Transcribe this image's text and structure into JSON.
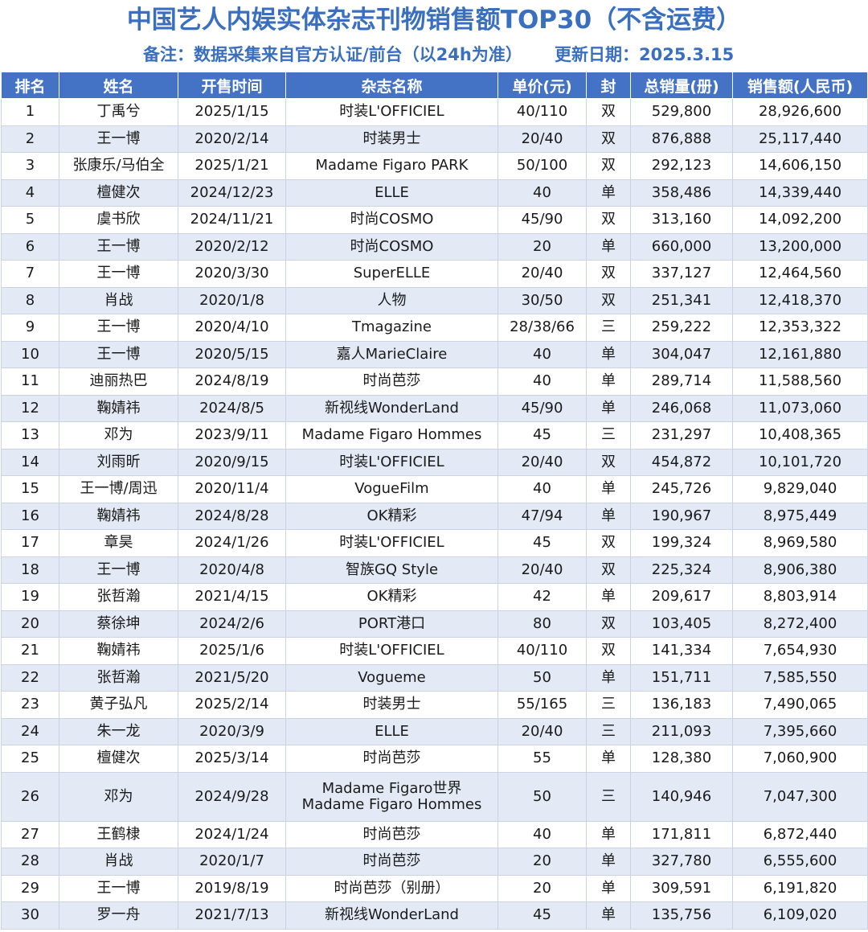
{
  "title": "中国艺人内娱实体杂志刊物销售额TOP30（不含运费）",
  "note": "备注：数据采集来自官方认证/前台（以24h为准）",
  "updated": "更新日期：2025.3.15",
  "headers": [
    "排名",
    "姓名",
    "开售时间",
    "杂志名称",
    "单价(元)",
    "封",
    "总销量(册)",
    "销售额(人民币)"
  ],
  "rows": [
    [
      "1",
      "丁禹兮",
      "2025/1/15",
      "时装L'OFFICIEL",
      "40/110",
      "双",
      "529,800",
      "28,926,600"
    ],
    [
      "2",
      "王一博",
      "2020/2/14",
      "时装男士",
      "20/40",
      "双",
      "876,888",
      "25,117,440"
    ],
    [
      "3",
      "张康乐/马伯全",
      "2025/1/21",
      "Madame Figaro PARK",
      "50/100",
      "双",
      "292,123",
      "14,606,150"
    ],
    [
      "4",
      "檀健次",
      "2024/12/23",
      "ELLE",
      "40",
      "单",
      "358,486",
      "14,339,440"
    ],
    [
      "5",
      "虞书欣",
      "2024/11/21",
      "时尚COSMO",
      "45/90",
      "双",
      "313,160",
      "14,092,200"
    ],
    [
      "6",
      "王一博",
      "2020/2/12",
      "时尚COSMO",
      "20",
      "单",
      "660,000",
      "13,200,000"
    ],
    [
      "7",
      "王一博",
      "2020/3/30",
      "SuperELLE",
      "20/40",
      "双",
      "337,127",
      "12,464,560"
    ],
    [
      "8",
      "肖战",
      "2020/1/8",
      "人物",
      "30/50",
      "双",
      "251,341",
      "12,418,370"
    ],
    [
      "9",
      "王一博",
      "2020/4/10",
      "Tmagazine",
      "28/38/66",
      "三",
      "259,222",
      "12,353,322"
    ],
    [
      "10",
      "王一博",
      "2020/5/15",
      "嘉人MarieClaire",
      "40",
      "单",
      "304,047",
      "12,161,880"
    ],
    [
      "11",
      "迪丽热巴",
      "2024/8/19",
      "时尚芭莎",
      "40",
      "单",
      "289,714",
      "11,588,560"
    ],
    [
      "12",
      "鞠婧祎",
      "2024/8/5",
      "新视线WonderLand",
      "45/90",
      "单",
      "246,068",
      "11,073,060"
    ],
    [
      "13",
      "邓为",
      "2023/9/11",
      "Madame Figaro Hommes",
      "45",
      "三",
      "231,297",
      "10,408,365"
    ],
    [
      "14",
      "刘雨昕",
      "2020/9/15",
      "时装L'OFFICIEL",
      "20/40",
      "双",
      "454,872",
      "10,101,720"
    ],
    [
      "15",
      "王一博/周迅",
      "2020/11/4",
      "VogueFilm",
      "40",
      "单",
      "245,726",
      "9,829,040"
    ],
    [
      "16",
      "鞠婧祎",
      "2024/8/28",
      "OK精彩",
      "47/94",
      "单",
      "190,967",
      "8,975,449"
    ],
    [
      "17",
      "章昊",
      "2024/1/26",
      "时装L'OFFICIEL",
      "45",
      "双",
      "199,324",
      "8,969,580"
    ],
    [
      "18",
      "王一博",
      "2020/4/8",
      "智族GQ Style",
      "20/40",
      "双",
      "225,324",
      "8,906,380"
    ],
    [
      "19",
      "张哲瀚",
      "2021/4/15",
      "OK精彩",
      "42",
      "单",
      "209,617",
      "8,803,914"
    ],
    [
      "20",
      "蔡徐坤",
      "2024/2/6",
      "PORT港口",
      "80",
      "双",
      "103,405",
      "8,272,400"
    ],
    [
      "21",
      "鞠婧祎",
      "2025/1/6",
      "时装L'OFFICIEL",
      "40/110",
      "双",
      "141,334",
      "7,654,930"
    ],
    [
      "22",
      "张哲瀚",
      "2021/5/20",
      "Vogueme",
      "50",
      "单",
      "151,711",
      "7,585,550"
    ],
    [
      "23",
      "黄子弘凡",
      "2025/2/14",
      "时装男士",
      "55/165",
      "三",
      "136,183",
      "7,490,065"
    ],
    [
      "24",
      "朱一龙",
      "2020/3/9",
      "ELLE",
      "20/40",
      "三",
      "211,093",
      "7,395,660"
    ],
    [
      "25",
      "檀健次",
      "2025/3/14",
      "时尚芭莎",
      "55",
      "单",
      "128,380",
      "7,060,900"
    ],
    [
      "26",
      "邓为",
      "2024/9/28",
      "Madame Figaro世界\nMadame Figaro Hommes",
      "50",
      "三",
      "140,946",
      "7,047,300"
    ],
    [
      "27",
      "王鹤棣",
      "2024/1/24",
      "时尚芭莎",
      "40",
      "单",
      "171,811",
      "6,872,440"
    ],
    [
      "28",
      "肖战",
      "2020/1/7",
      "时尚芭莎",
      "20",
      "单",
      "327,780",
      "6,555,600"
    ],
    [
      "29",
      "王一博",
      "2019/8/19",
      "时尚芭莎（别册）",
      "20",
      "单",
      "309,591",
      "6,191,820"
    ],
    [
      "30",
      "罗一舟",
      "2021/7/13",
      "新视线WonderLand",
      "45",
      "单",
      "135,756",
      "6,109,020"
    ]
  ],
  "colors": {
    "title": "#3a6fc0",
    "header_bg": "#4472c4",
    "row_alt": "#e4eaf5",
    "border": "#c9d3e4"
  }
}
